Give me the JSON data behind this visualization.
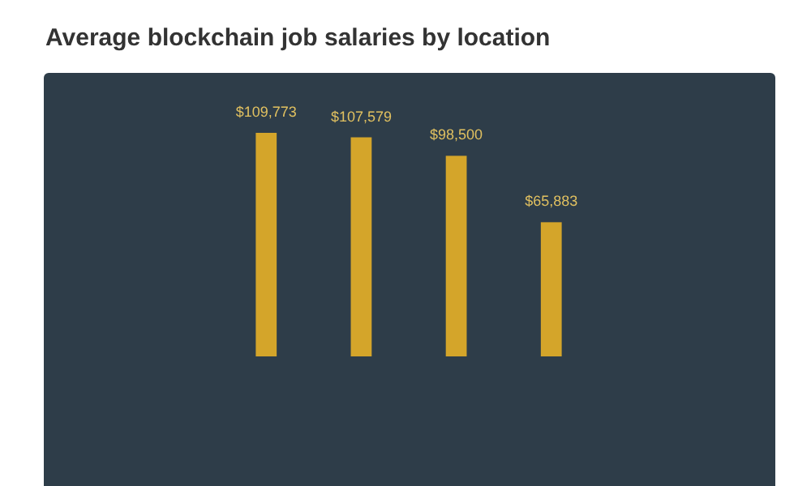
{
  "chart_data": {
    "type": "bar",
    "title": "Average blockchain job salaries by location",
    "categories": [
      null,
      null,
      null,
      null
    ],
    "values": [
      109773,
      107579,
      98500,
      65883
    ],
    "color": "#d4a52a",
    "value_labels": [
      "$109,773",
      "$107,579",
      "$98,500",
      "$65,883"
    ]
  }
}
